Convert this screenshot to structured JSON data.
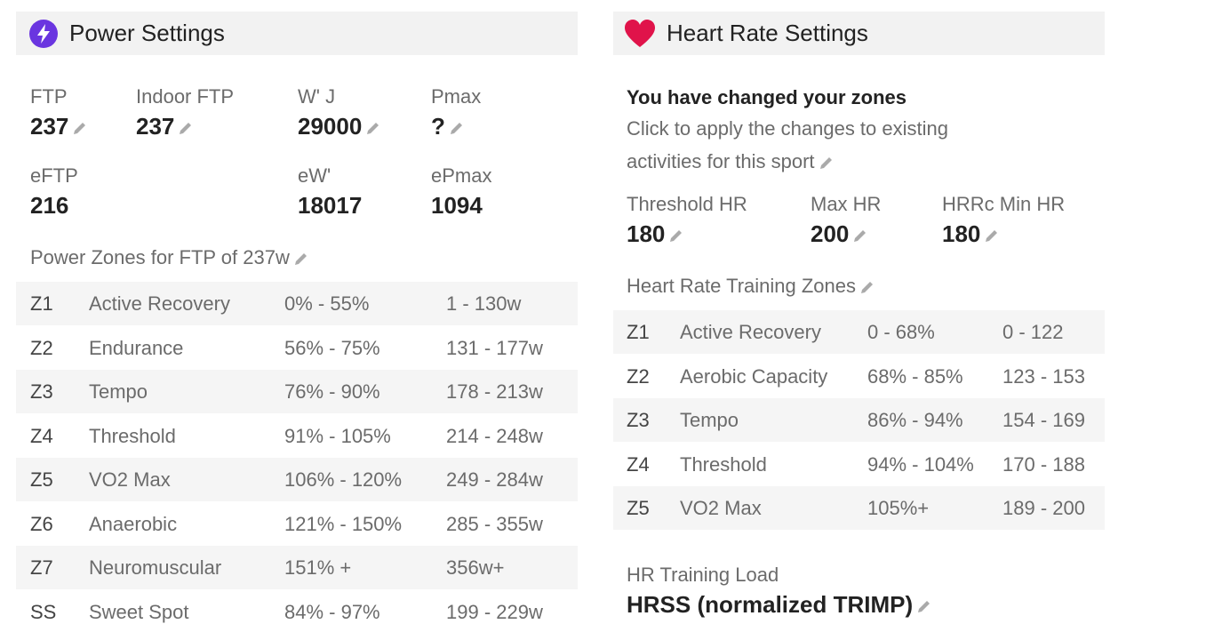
{
  "power": {
    "title": "Power Settings",
    "fields": [
      {
        "label": "FTP",
        "value": 237
      },
      {
        "label": "Indoor FTP",
        "value": 237
      },
      {
        "label": "W' J",
        "value": 29000
      },
      {
        "label": "Pmax",
        "value": "?"
      }
    ],
    "estimates": [
      {
        "label": "eFTP",
        "value": 216
      },
      {
        "label": "eW'",
        "value": 18017
      },
      {
        "label": "ePmax",
        "value": 1094
      }
    ],
    "zones_title": "Power Zones for FTP of 237w",
    "zones": [
      [
        "Z1",
        "Active Recovery",
        "0% - 55%",
        "1 - 130w"
      ],
      [
        "Z2",
        "Endurance",
        "56% - 75%",
        "131 - 177w"
      ],
      [
        "Z3",
        "Tempo",
        "76% - 90%",
        "178 - 213w"
      ],
      [
        "Z4",
        "Threshold",
        "91% - 105%",
        "214 - 248w"
      ],
      [
        "Z5",
        "VO2 Max",
        "106% - 120%",
        "249 - 284w"
      ],
      [
        "Z6",
        "Anaerobic",
        "121% - 150%",
        "285 - 355w"
      ],
      [
        "Z7",
        "Neuromuscular",
        "151% +",
        "356w+"
      ],
      [
        "SS",
        "Sweet Spot",
        "84% - 97%",
        "199 - 229w"
      ]
    ]
  },
  "heart": {
    "title": "Heart Rate Settings",
    "notice_title": "You have changed your zones",
    "notice_text": "Click to apply the changes to existing activities for this sport",
    "fields": [
      {
        "label": "Threshold HR",
        "value": 180
      },
      {
        "label": "Max HR",
        "value": 200
      },
      {
        "label": "HRRc Min HR",
        "value": 180
      }
    ],
    "zones_title": "Heart Rate Training Zones",
    "zones": [
      [
        "Z1",
        "Active Recovery",
        "0 - 68%",
        "0 - 122"
      ],
      [
        "Z2",
        "Aerobic Capacity",
        "68% - 85%",
        "123 - 153"
      ],
      [
        "Z3",
        "Tempo",
        "86% - 94%",
        "154 - 169"
      ],
      [
        "Z4",
        "Threshold",
        "94% - 104%",
        "170 - 188"
      ],
      [
        "Z5",
        "VO2 Max",
        "105%+",
        "189 - 200"
      ]
    ],
    "load_label": "HR Training Load",
    "load_value": "HRSS (normalized TRIMP)"
  }
}
